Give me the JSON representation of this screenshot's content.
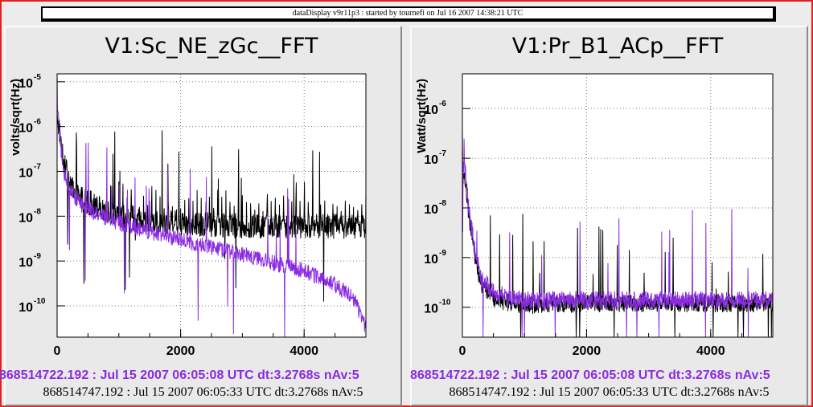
{
  "window": {
    "title": "dataDisplay v9r11p3 : started by tournefi on Jul 16 2007 14:38:21 UTC"
  },
  "colors": {
    "series_reference": "#000000",
    "series_current": "#8a2be2",
    "frame_border": "#e32020"
  },
  "chart_data": [
    {
      "type": "line",
      "title": "V1:Sc_NE_zGc__FFT",
      "ylabel": "volts/sqrt(Hz)",
      "xlabel": "",
      "xlim": [
        0,
        5000
      ],
      "ylim": [
        2e-11,
        1.5e-05
      ],
      "yscale": "log",
      "grid": true,
      "x_ticks": [
        "0",
        "2000",
        "4000"
      ],
      "y_ticks": [
        {
          "base": "10",
          "exp": "-5"
        },
        {
          "base": "10",
          "exp": "-6"
        },
        {
          "base": "10",
          "exp": "-7"
        },
        {
          "base": "10",
          "exp": "-8"
        },
        {
          "base": "10",
          "exp": "-9"
        },
        {
          "base": "10",
          "exp": "-10"
        }
      ],
      "series": [
        {
          "color": "#000000",
          "x": [
            0,
            100,
            200,
            300,
            400,
            600,
            800,
            1000,
            1500,
            2000,
            2500,
            3000,
            3500,
            4000,
            4500,
            5000
          ],
          "values": [
            2e-06,
            2e-07,
            5e-08,
            3e-08,
            2.5e-08,
            1.8e-08,
            1.3e-08,
            1e-08,
            8e-09,
            7e-09,
            6.5e-09,
            6e-09,
            6e-09,
            6e-09,
            6e-09,
            6e-09
          ]
        },
        {
          "color": "#8a2be2",
          "x": [
            0,
            100,
            200,
            300,
            400,
            600,
            800,
            1000,
            1500,
            2000,
            2500,
            3000,
            3500,
            4000,
            4500,
            4800,
            5000
          ],
          "values": [
            3e-06,
            1e-07,
            4e-08,
            2.5e-08,
            1.8e-08,
            1.2e-08,
            9e-09,
            7e-09,
            4.5e-09,
            3e-09,
            2e-09,
            1.4e-09,
            9e-10,
            6e-10,
            3e-10,
            1.5e-10,
            3e-11
          ]
        }
      ],
      "stamp_current": "868514722.192 : Jul 15 2007 06:05:08 UTC dt:3.2768s nAv:5",
      "stamp_reference": "868514747.192 : Jul 15 2007 06:05:33 UTC dt:3.2768s nAv:5"
    },
    {
      "type": "line",
      "title": "V1:Pr_B1_ACp__FFT",
      "ylabel": "Watt/sqrt(Hz)",
      "xlabel": "",
      "xlim": [
        0,
        5000
      ],
      "ylim": [
        2.5e-11,
        5e-06
      ],
      "yscale": "log",
      "grid": true,
      "x_ticks": [
        "0",
        "2000",
        "4000"
      ],
      "y_ticks": [
        {
          "base": "10",
          "exp": "-6"
        },
        {
          "base": "10",
          "exp": "-7"
        },
        {
          "base": "10",
          "exp": "-8"
        },
        {
          "base": "10",
          "exp": "-9"
        },
        {
          "base": "10",
          "exp": "-10"
        }
      ],
      "series": [
        {
          "color": "#000000",
          "x": [
            0,
            50,
            100,
            200,
            300,
            500,
            800,
            1000,
            2000,
            3000,
            4000,
            5000
          ],
          "values": [
            5e-08,
            3e-08,
            8e-09,
            1e-09,
            3e-10,
            1.5e-10,
            1.2e-10,
            1.1e-10,
            1.2e-10,
            1.2e-10,
            1.2e-10,
            1.2e-10
          ]
        },
        {
          "color": "#8a2be2",
          "x": [
            0,
            50,
            100,
            200,
            300,
            500,
            800,
            1000,
            2000,
            3000,
            4000,
            5000
          ],
          "values": [
            8e-08,
            5e-08,
            1e-08,
            1.5e-09,
            4e-10,
            2e-10,
            1.5e-10,
            1.4e-10,
            1.4e-10,
            1.4e-10,
            1.4e-10,
            1.4e-10
          ]
        }
      ],
      "stamp_current": "868514722.192 : Jul 15 2007 06:05:08 UTC dt:3.2768s nAv:5",
      "stamp_reference": "868514747.192 : Jul 15 2007 06:05:33 UTC dt:3.2768s nAv:5"
    }
  ]
}
